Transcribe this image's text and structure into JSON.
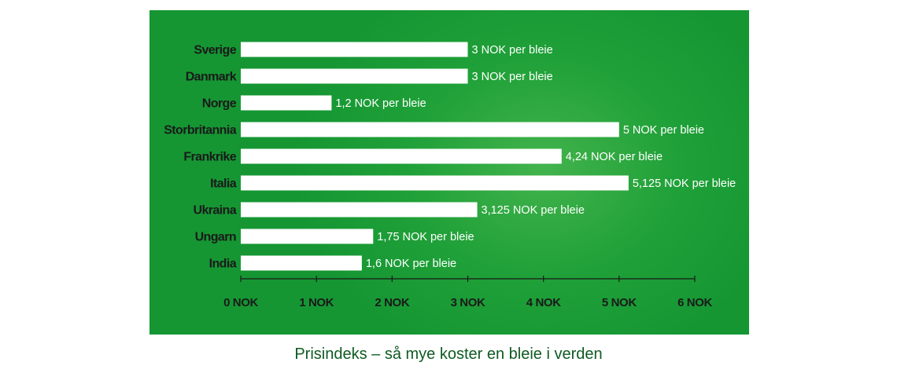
{
  "colors": {
    "panel": "#1fa038",
    "bar": "#ffffff",
    "title": "#0f5a22"
  },
  "chart_data": {
    "type": "bar",
    "orientation": "horizontal",
    "title": "Prisindeks – så mye koster en bleie i verden",
    "categories": [
      "Sverige",
      "Danmark",
      "Norge",
      "Storbritannia",
      "Frankrike",
      "Italia",
      "Ukraina",
      "Ungarn",
      "India"
    ],
    "values": [
      3,
      3,
      1.2,
      5,
      4.24,
      5.125,
      3.125,
      1.75,
      1.6
    ],
    "data_labels": [
      "3 NOK per bleie",
      "3 NOK per bleie",
      "1,2 NOK per bleie",
      "5 NOK per bleie",
      "4,24 NOK per bleie",
      "5,125 NOK per bleie",
      "3,125 NOK per bleie",
      "1,75 NOK per bleie",
      "1,6 NOK per bleie"
    ],
    "xlim": [
      0,
      6
    ],
    "ticks": [
      0,
      1,
      2,
      3,
      4,
      5,
      6
    ],
    "tick_labels": [
      "0 NOK",
      "1 NOK",
      "2 NOK",
      "3 NOK",
      "4 NOK",
      "5 NOK",
      "6 NOK"
    ],
    "grid": false,
    "legend": "none"
  }
}
